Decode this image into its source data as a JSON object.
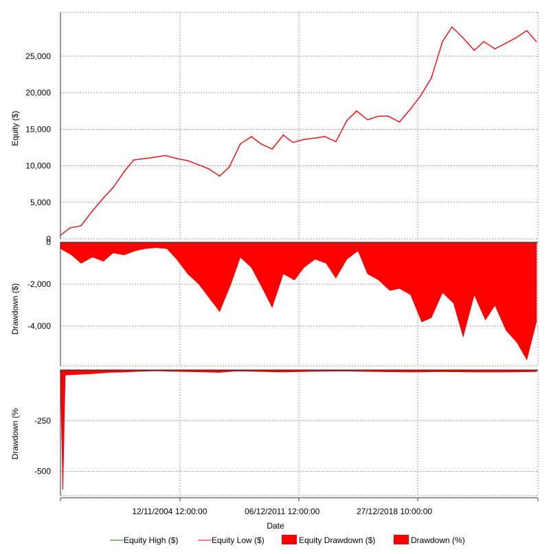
{
  "chart_data": [
    {
      "type": "line",
      "panel": "equity",
      "ylabel": "Equity ($)",
      "ylim": [
        0,
        31000
      ],
      "yticks": [
        0,
        5000,
        10000,
        15000,
        20000,
        25000
      ],
      "ytick_labels": [
        "0",
        "5,000",
        "10,000",
        "15,000",
        "20,000",
        "25,000"
      ],
      "grid": true,
      "series": [
        {
          "name": "Equity Low ($)",
          "color": "#ff0000",
          "x": [
            1998.0,
            1998.6,
            1999.3,
            2000.0,
            2000.7,
            2001.3,
            2002.0,
            2002.6,
            2003.3,
            2004.0,
            2004.6,
            2005.3,
            2006.0,
            2006.6,
            2007.3,
            2008.0,
            2008.6,
            2009.3,
            2010.0,
            2010.6,
            2011.3,
            2012.0,
            2012.6,
            2013.3,
            2014.0,
            2014.6,
            2015.3,
            2016.0,
            2016.6,
            2017.3,
            2018.0,
            2018.6,
            2019.3,
            2020.0,
            2020.6,
            2021.3,
            2022.0,
            2022.6,
            2023.3,
            2024.0,
            2024.6,
            2025.3,
            2026.0,
            2026.6,
            2027.3,
            2027.9
          ],
          "values": [
            500,
            1500,
            1800,
            3800,
            5600,
            7000,
            9200,
            10800,
            11000,
            11200,
            11400,
            11000,
            10700,
            10200,
            9600,
            8600,
            9800,
            13000,
            14000,
            13000,
            12300,
            14200,
            13200,
            13600,
            13800,
            14000,
            13300,
            16200,
            17500,
            16300,
            16800,
            16800,
            16000,
            17800,
            19500,
            22000,
            27000,
            29000,
            27500,
            25800,
            27000,
            26000,
            26800,
            27500,
            28500,
            27000
          ]
        },
        {
          "name": "Equity High ($)",
          "color": "#008000",
          "x": [],
          "values": []
        }
      ]
    },
    {
      "type": "area",
      "panel": "drawdown_dollars",
      "ylabel": "Drawdown ($)",
      "ylim": [
        -5900,
        0
      ],
      "yticks": [
        0,
        -2000,
        -4000
      ],
      "ytick_labels": [
        "0",
        "-2,000",
        "-4,000"
      ],
      "grid": true,
      "series": [
        {
          "name": "Equity Drawdown ($)",
          "color": "#ff0000",
          "x": [
            1998.0,
            1998.7,
            1999.3,
            2000.0,
            2000.7,
            2001.3,
            2002.0,
            2002.7,
            2003.3,
            2004.0,
            2004.7,
            2005.3,
            2006.0,
            2006.7,
            2007.3,
            2008.0,
            2008.7,
            2009.3,
            2010.0,
            2010.7,
            2011.3,
            2012.0,
            2012.7,
            2013.3,
            2014.0,
            2014.7,
            2015.3,
            2016.0,
            2016.7,
            2017.3,
            2018.0,
            2018.7,
            2019.3,
            2020.0,
            2020.7,
            2021.3,
            2022.0,
            2022.7,
            2023.3,
            2024.0,
            2024.7,
            2025.3,
            2026.0,
            2026.7,
            2027.3,
            2027.9
          ],
          "values": [
            -300,
            -600,
            -1000,
            -700,
            -900,
            -500,
            -600,
            -400,
            -300,
            -250,
            -300,
            -800,
            -1500,
            -2000,
            -2600,
            -3300,
            -2000,
            -700,
            -1200,
            -2200,
            -3100,
            -1500,
            -1800,
            -1200,
            -800,
            -1000,
            -1700,
            -800,
            -400,
            -1500,
            -1800,
            -2300,
            -2200,
            -2500,
            -3800,
            -3600,
            -2400,
            -2900,
            -4500,
            -2500,
            -3700,
            -3000,
            -4200,
            -4800,
            -5600,
            -3800
          ]
        }
      ]
    },
    {
      "type": "area",
      "panel": "drawdown_percent",
      "ylabel": "Drawdown (%",
      "ylim": [
        -620,
        0
      ],
      "yticks": [
        -250,
        -500
      ],
      "ytick_labels": [
        "-250",
        "-500"
      ],
      "grid": true,
      "series": [
        {
          "name": "Drawdown (%)",
          "color": "#ff0000",
          "x": [
            1998.0,
            1998.15,
            1998.3,
            1999.0,
            2000.0,
            2001.0,
            2002.0,
            2003.0,
            2004.0,
            2006.0,
            2008.0,
            2009.0,
            2010.0,
            2012.0,
            2014.0,
            2016.0,
            2018.0,
            2020.0,
            2022.0,
            2024.0,
            2026.0,
            2027.9
          ],
          "values": [
            -20,
            -590,
            -25,
            -22,
            -18,
            -12,
            -10,
            -6,
            -4,
            -8,
            -12,
            -5,
            -6,
            -10,
            -6,
            -5,
            -8,
            -10,
            -8,
            -10,
            -10,
            -8
          ]
        }
      ]
    }
  ],
  "x_axis": {
    "label": "Date",
    "range": [
      1998.0,
      2028.0
    ],
    "tick_positions": [
      2004.86,
      2011.93,
      2018.98
    ],
    "tick_labels": [
      "12/11/2004 12:00:00",
      "06/12/2011 12:00:00",
      "27/12/2018 10:00:00"
    ]
  },
  "legend": {
    "placement": "bottom",
    "items": [
      {
        "label": "Equity High ($)",
        "color": "#008000",
        "kind": "line"
      },
      {
        "label": "Equity Low ($)",
        "color": "#ff0000",
        "kind": "line"
      },
      {
        "label": "Equity Drawdown ($)",
        "color": "#ff0000",
        "kind": "box"
      },
      {
        "label": "Drawdown (%)",
        "color": "#ff0000",
        "kind": "box"
      }
    ]
  }
}
